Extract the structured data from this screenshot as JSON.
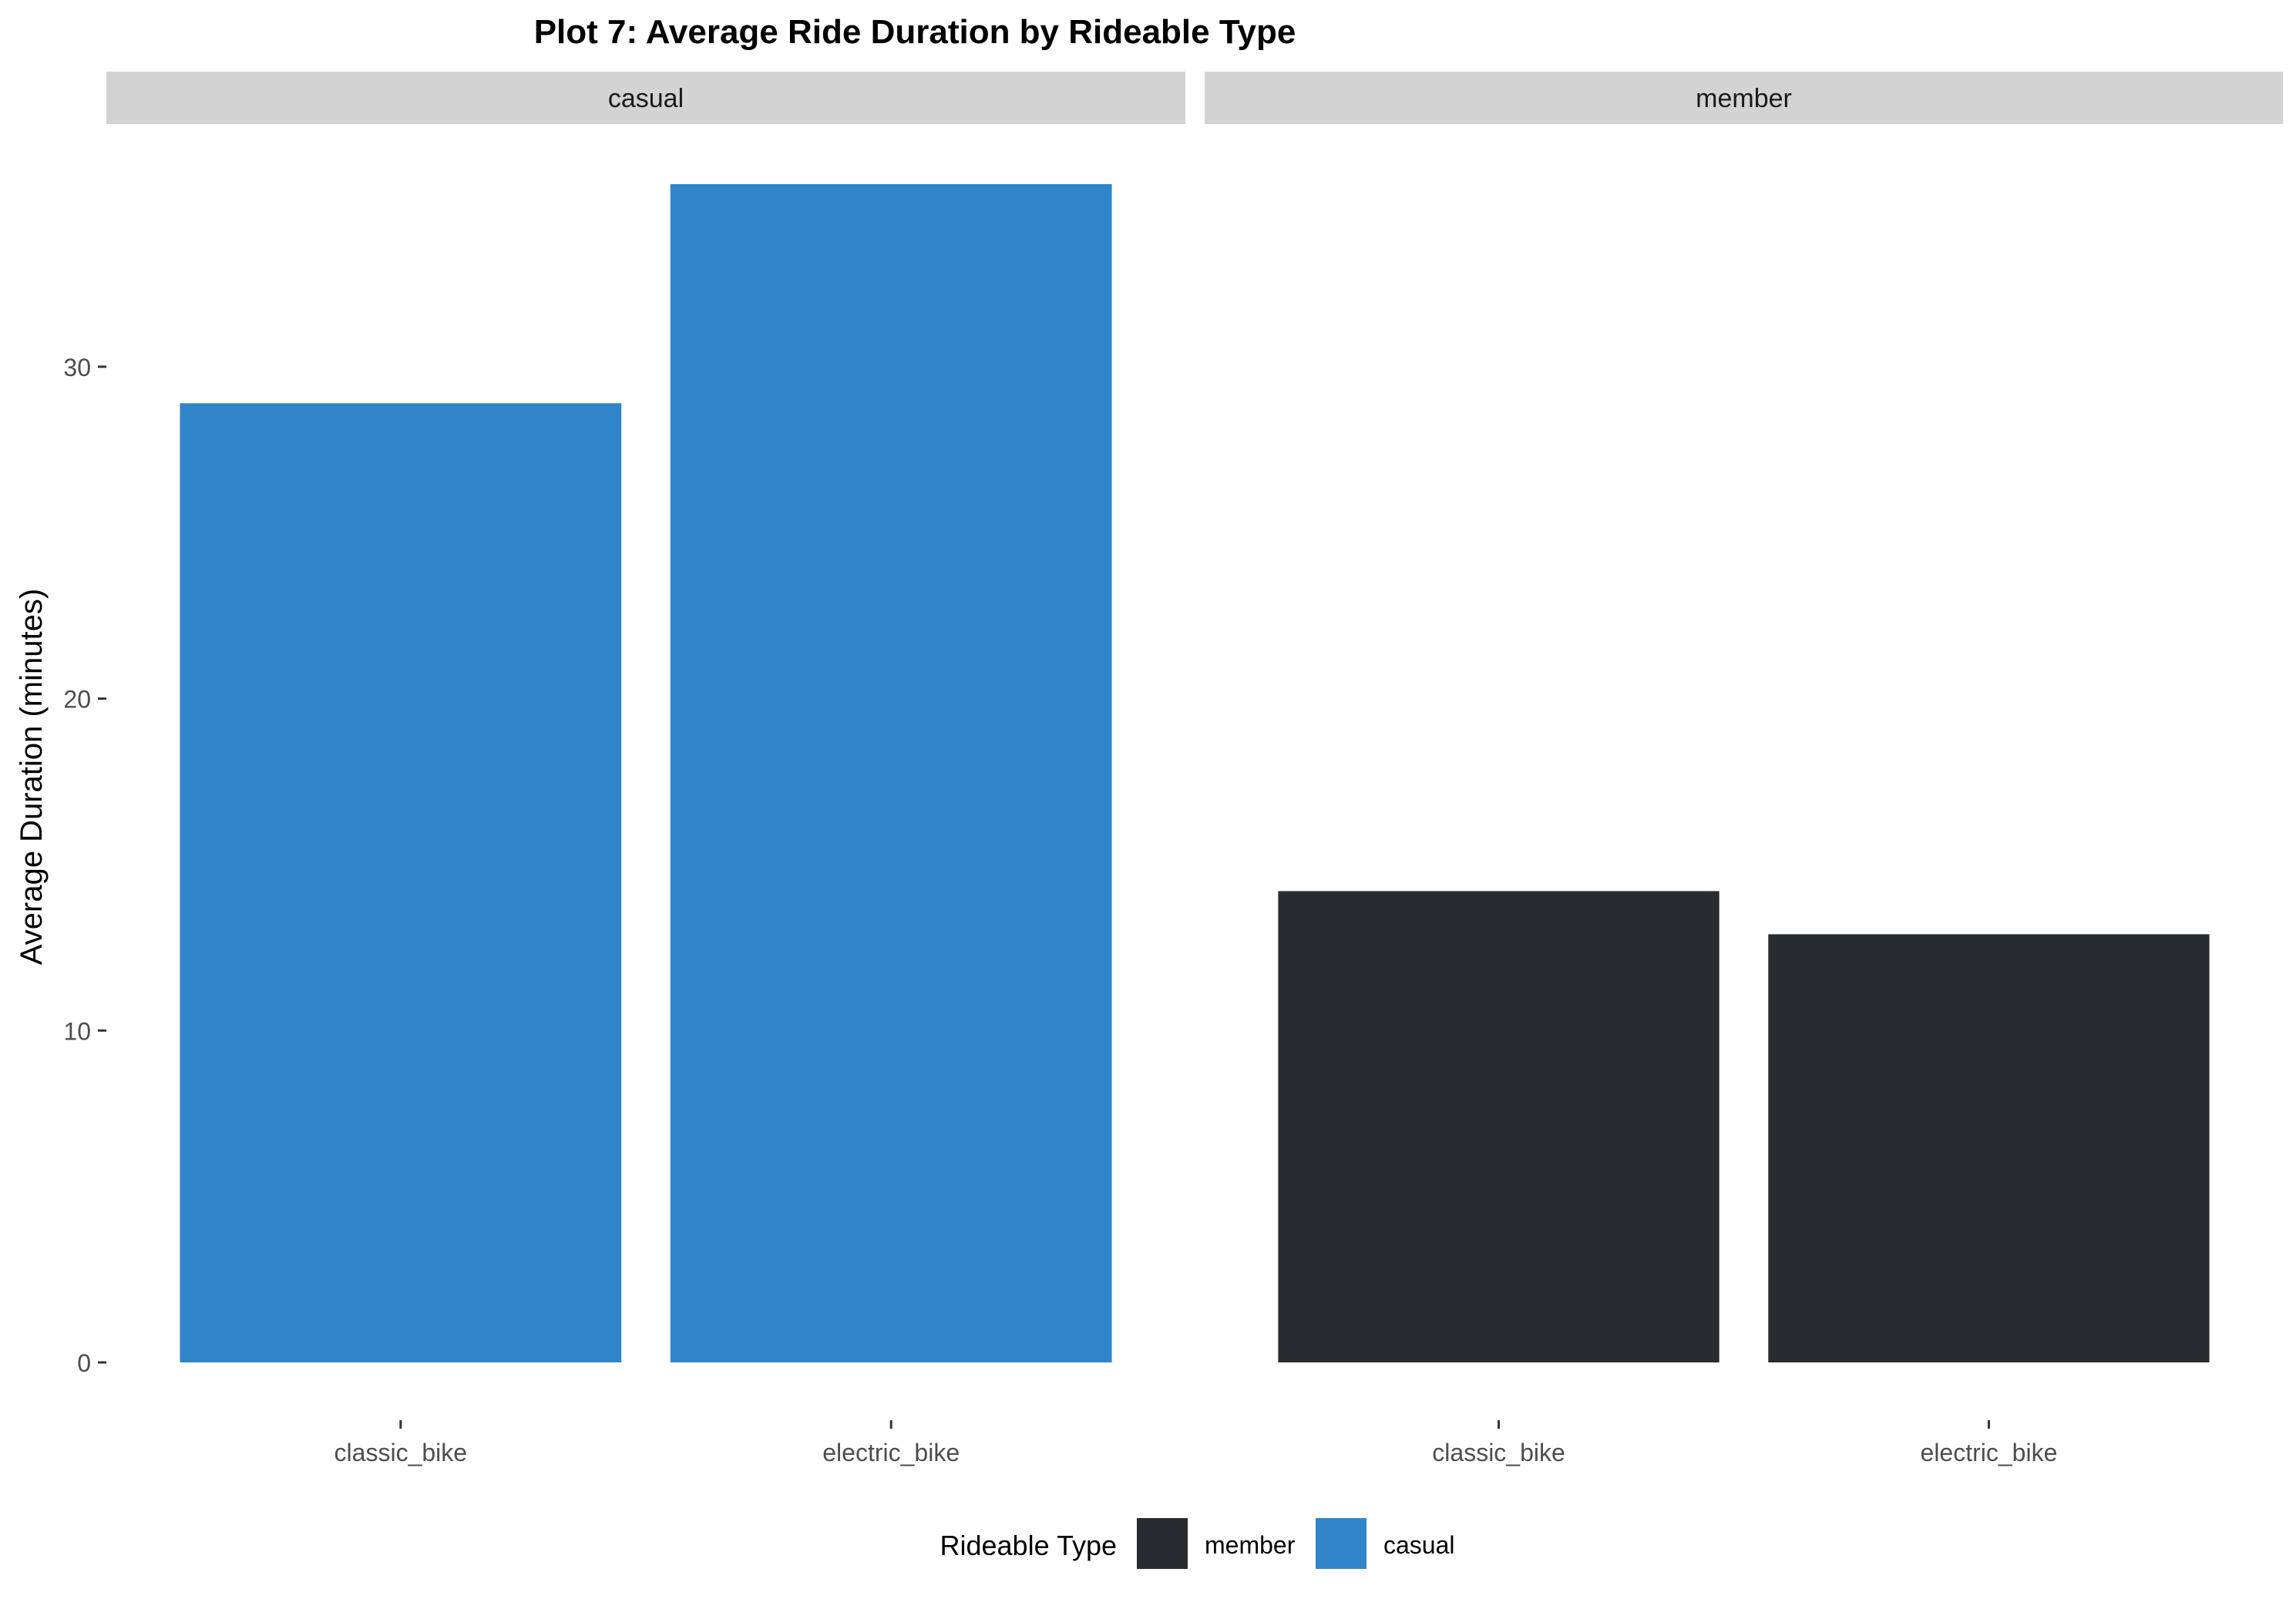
{
  "chart_data": {
    "type": "bar",
    "title": "Plot 7: Average Ride Duration by Rideable Type",
    "ylabel": "Average Duration (minutes)",
    "xlabel": "",
    "ylim": [
      0,
      35.5
    ],
    "yticks": [
      0,
      10,
      20,
      30
    ],
    "categories": [
      "classic_bike",
      "electric_bike"
    ],
    "grid": false,
    "facets": [
      {
        "label": "casual",
        "series": "casual",
        "values": [
          28.9,
          35.5
        ]
      },
      {
        "label": "member",
        "series": "member",
        "values": [
          14.2,
          12.9
        ]
      }
    ],
    "legend": {
      "title": "Rideable Type",
      "placement": "bottom",
      "entries": [
        {
          "name": "member",
          "color": "#272C30"
        },
        {
          "name": "casual",
          "color": "#3084CA"
        }
      ]
    },
    "colors": {
      "casual": "#3084CA",
      "member": "#272C30",
      "strip": "#D3D3D3"
    }
  }
}
